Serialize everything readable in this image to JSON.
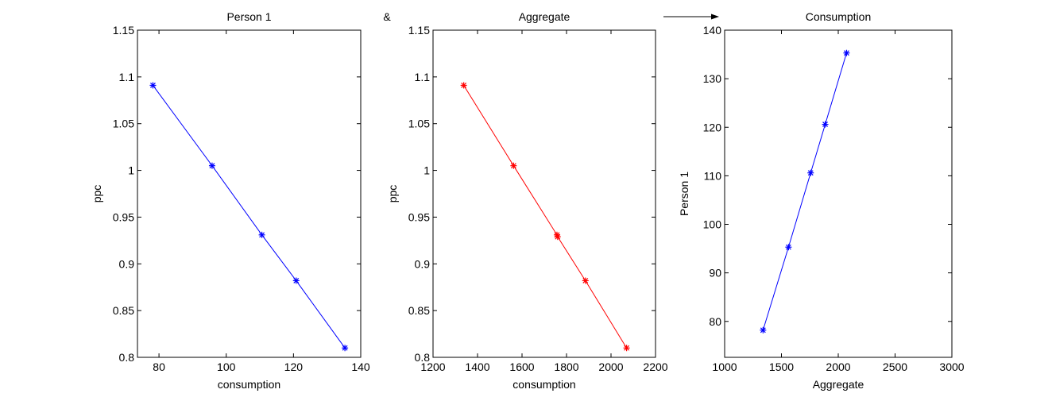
{
  "annotations": {
    "ampersand": "&",
    "arrow": "right-arrow"
  },
  "chart_data": [
    {
      "type": "line",
      "title": "Person 1",
      "xlabel": "consumption",
      "ylabel": "ppc",
      "xlim": [
        73.6,
        140
      ],
      "ylim": [
        0.8,
        1.15
      ],
      "xticks": [
        80,
        100,
        120,
        140
      ],
      "yticks": [
        0.8,
        0.85,
        0.9,
        0.95,
        1,
        1.05,
        1.1,
        1.15
      ],
      "xtick_labels": [
        "80",
        "100",
        "120",
        "140"
      ],
      "ytick_labels": [
        "0.8",
        "0.85",
        "0.9",
        "0.95",
        "1",
        "1.05",
        "1.1",
        "1.15"
      ],
      "color": "#0000ff",
      "marker": "*",
      "x": [
        78.2,
        95.8,
        110.6,
        120.8,
        135.3
      ],
      "y": [
        1.091,
        1.005,
        0.931,
        0.882,
        0.81
      ]
    },
    {
      "type": "line",
      "title": "Aggregate",
      "xlabel": "consumption",
      "ylabel": "ppc",
      "xlim": [
        1200,
        2200
      ],
      "ylim": [
        0.8,
        1.15
      ],
      "xticks": [
        1200,
        1400,
        1600,
        1800,
        2000,
        2200
      ],
      "yticks": [
        0.8,
        0.85,
        0.9,
        0.95,
        1,
        1.05,
        1.1,
        1.15
      ],
      "xtick_labels": [
        "1200",
        "1400",
        "1600",
        "1800",
        "2000",
        "2200"
      ],
      "ytick_labels": [
        "0.8",
        "0.85",
        "0.9",
        "0.95",
        "1",
        "1.05",
        "1.1",
        "1.15"
      ],
      "color": "#ff0000",
      "marker": "*",
      "x": [
        1338,
        1562,
        1757,
        1760,
        1885,
        2070
      ],
      "y": [
        1.091,
        1.005,
        0.931,
        0.929,
        0.882,
        0.81
      ]
    },
    {
      "type": "line",
      "title": "Consumption",
      "xlabel": "Aggregate",
      "ylabel": "Person 1",
      "xlim": [
        1000,
        3000
      ],
      "ylim": [
        72.6,
        140
      ],
      "xticks": [
        1000,
        1500,
        2000,
        2500,
        3000
      ],
      "yticks": [
        80,
        90,
        100,
        110,
        120,
        130,
        140
      ],
      "xtick_labels": [
        "1000",
        "1500",
        "2000",
        "2500",
        "3000"
      ],
      "ytick_labels": [
        "80",
        "90",
        "100",
        "110",
        "120",
        "130",
        "140"
      ],
      "color": "#0000ff",
      "marker": "*",
      "x": [
        1338,
        1562,
        1757,
        1885,
        2073
      ],
      "y": [
        78.2,
        95.3,
        110.6,
        120.6,
        135.3
      ]
    }
  ]
}
